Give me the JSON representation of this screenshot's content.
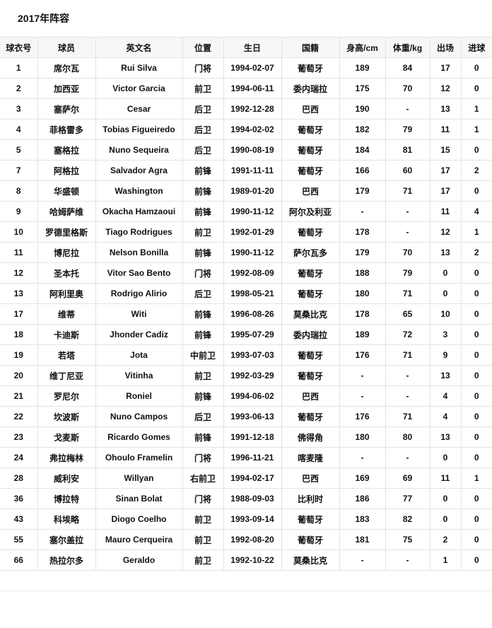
{
  "title": "2017年阵容",
  "columns": [
    "球衣号",
    "球员",
    "英文名",
    "位置",
    "生日",
    "国籍",
    "身高/cm",
    "体重/kg",
    "出场",
    "进球"
  ],
  "rows": [
    [
      "1",
      "席尔瓦",
      "Rui Silva",
      "门将",
      "1994-02-07",
      "葡萄牙",
      "189",
      "84",
      "17",
      "0"
    ],
    [
      "2",
      "加西亚",
      "Victor Garcia",
      "前卫",
      "1994-06-11",
      "委内瑞拉",
      "175",
      "70",
      "12",
      "0"
    ],
    [
      "3",
      "塞萨尔",
      "Cesar",
      "后卫",
      "1992-12-28",
      "巴西",
      "190",
      "-",
      "13",
      "1"
    ],
    [
      "4",
      "菲格雷多",
      "Tobias Figueiredo",
      "后卫",
      "1994-02-02",
      "葡萄牙",
      "182",
      "79",
      "11",
      "1"
    ],
    [
      "5",
      "塞格拉",
      "Nuno Sequeira",
      "后卫",
      "1990-08-19",
      "葡萄牙",
      "184",
      "81",
      "15",
      "0"
    ],
    [
      "7",
      "阿格拉",
      "Salvador Agra",
      "前锋",
      "1991-11-11",
      "葡萄牙",
      "166",
      "60",
      "17",
      "2"
    ],
    [
      "8",
      "华盛顿",
      "Washington",
      "前锋",
      "1989-01-20",
      "巴西",
      "179",
      "71",
      "17",
      "0"
    ],
    [
      "9",
      "哈姆萨维",
      "Okacha Hamzaoui",
      "前锋",
      "1990-11-12",
      "阿尔及利亚",
      "-",
      "-",
      "11",
      "4"
    ],
    [
      "10",
      "罗德里格斯",
      "Tiago Rodrigues",
      "前卫",
      "1992-01-29",
      "葡萄牙",
      "178",
      "-",
      "12",
      "1"
    ],
    [
      "11",
      "博尼拉",
      "Nelson Bonilla",
      "前锋",
      "1990-11-12",
      "萨尔瓦多",
      "179",
      "70",
      "13",
      "2"
    ],
    [
      "12",
      "圣本托",
      "Vitor Sao Bento",
      "门将",
      "1992-08-09",
      "葡萄牙",
      "188",
      "79",
      "0",
      "0"
    ],
    [
      "13",
      "阿利里奥",
      "Rodrigo Alirio",
      "后卫",
      "1998-05-21",
      "葡萄牙",
      "180",
      "71",
      "0",
      "0"
    ],
    [
      "17",
      "维蒂",
      "Witi",
      "前锋",
      "1996-08-26",
      "莫桑比克",
      "178",
      "65",
      "10",
      "0"
    ],
    [
      "18",
      "卡迪斯",
      "Jhonder Cadiz",
      "前锋",
      "1995-07-29",
      "委内瑞拉",
      "189",
      "72",
      "3",
      "0"
    ],
    [
      "19",
      "若塔",
      "Jota",
      "中前卫",
      "1993-07-03",
      "葡萄牙",
      "176",
      "71",
      "9",
      "0"
    ],
    [
      "20",
      "维丁尼亚",
      "Vitinha",
      "前卫",
      "1992-03-29",
      "葡萄牙",
      "-",
      "-",
      "13",
      "0"
    ],
    [
      "21",
      "罗尼尔",
      "Roniel",
      "前锋",
      "1994-06-02",
      "巴西",
      "-",
      "-",
      "4",
      "0"
    ],
    [
      "22",
      "坎波斯",
      "Nuno Campos",
      "后卫",
      "1993-06-13",
      "葡萄牙",
      "176",
      "71",
      "4",
      "0"
    ],
    [
      "23",
      "戈麦斯",
      "Ricardo Gomes",
      "前锋",
      "1991-12-18",
      "佛得角",
      "180",
      "80",
      "13",
      "0"
    ],
    [
      "24",
      "弗拉梅林",
      "Ohoulo Framelin",
      "门将",
      "1996-11-21",
      "喀麦隆",
      "-",
      "-",
      "0",
      "0"
    ],
    [
      "28",
      "威利安",
      "Willyan",
      "右前卫",
      "1994-02-17",
      "巴西",
      "169",
      "69",
      "11",
      "1"
    ],
    [
      "36",
      "博拉特",
      "Sinan Bolat",
      "门将",
      "1988-09-03",
      "比利时",
      "186",
      "77",
      "0",
      "0"
    ],
    [
      "43",
      "科埃略",
      "Diogo Coelho",
      "前卫",
      "1993-09-14",
      "葡萄牙",
      "183",
      "82",
      "0",
      "0"
    ],
    [
      "55",
      "塞尔盖拉",
      "Mauro Cerqueira",
      "前卫",
      "1992-08-20",
      "葡萄牙",
      "181",
      "75",
      "2",
      "0"
    ],
    [
      "66",
      "热拉尔多",
      "Geraldo",
      "前卫",
      "1992-10-22",
      "莫桑比克",
      "-",
      "-",
      "1",
      "0"
    ]
  ]
}
